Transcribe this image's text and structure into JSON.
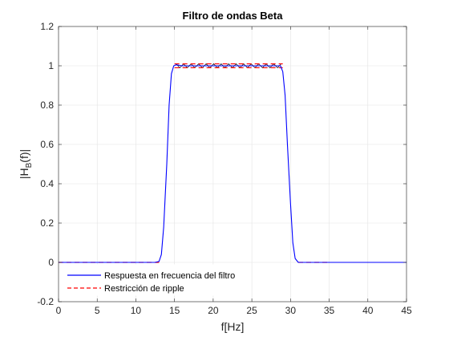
{
  "chart_data": {
    "type": "line",
    "title": "Filtro de ondas Beta",
    "xlabel": "f[Hz]",
    "ylabel": {
      "main": "|H",
      "sub": "B",
      "tail": "(f)|"
    },
    "xlim": [
      0,
      45
    ],
    "ylim": [
      -0.2,
      1.2
    ],
    "xticks": [
      0,
      5,
      10,
      15,
      20,
      25,
      30,
      35,
      40,
      45
    ],
    "yticks": [
      -0.2,
      0,
      0.2,
      0.4,
      0.6,
      0.8,
      1,
      1.2
    ],
    "ytick_labels": [
      "-0.2",
      "0",
      "0.2",
      "0.4",
      "0.6",
      "0.8",
      "1",
      "1.2"
    ],
    "grid": true,
    "legend_position": "bottom-left",
    "series": [
      {
        "name": "Respuesta en frecuencia del filtro",
        "color": "#0000ff",
        "style": "solid",
        "x": [
          0,
          12.5,
          13.0,
          13.3,
          13.6,
          14.0,
          14.3,
          14.6,
          14.9,
          15.2,
          16,
          17,
          18,
          19,
          20,
          21,
          22,
          23,
          24,
          25,
          26,
          27,
          28,
          28.7,
          29.0,
          29.3,
          29.6,
          30.0,
          30.3,
          30.6,
          31.0,
          31.5,
          45
        ],
        "y": [
          0,
          0,
          0.005,
          0.04,
          0.18,
          0.5,
          0.8,
          0.96,
          1.0,
          1.005,
          1.0,
          1.0,
          1.0,
          1.0,
          1.0,
          1.0,
          1.0,
          1.0,
          1.0,
          1.0,
          1.0,
          1.0,
          1.0,
          1.0,
          0.97,
          0.85,
          0.6,
          0.3,
          0.1,
          0.02,
          0.0,
          0,
          0
        ]
      },
      {
        "name": "Restricción de ripple",
        "color": "#ff0000",
        "style": "dashed",
        "segments": [
          {
            "x": [
              0,
              13
            ],
            "y": [
              0,
              0
            ]
          },
          {
            "x": [
              15,
              29
            ],
            "y": [
              1.01,
              1.01
            ]
          },
          {
            "x": [
              15,
              29
            ],
            "y": [
              0.99,
              0.99
            ]
          },
          {
            "x": [
              31,
              35
            ],
            "y": [
              0,
              0
            ]
          }
        ]
      }
    ],
    "ripple_zigzag": {
      "x_start": 15.2,
      "x_end": 28.8,
      "y_high": 1.01,
      "y_low": 0.99,
      "periods": 14,
      "color": "#000000"
    }
  },
  "colors": {
    "axes": "#262626",
    "grid": "#e3e3e3",
    "background": "#ffffff"
  }
}
